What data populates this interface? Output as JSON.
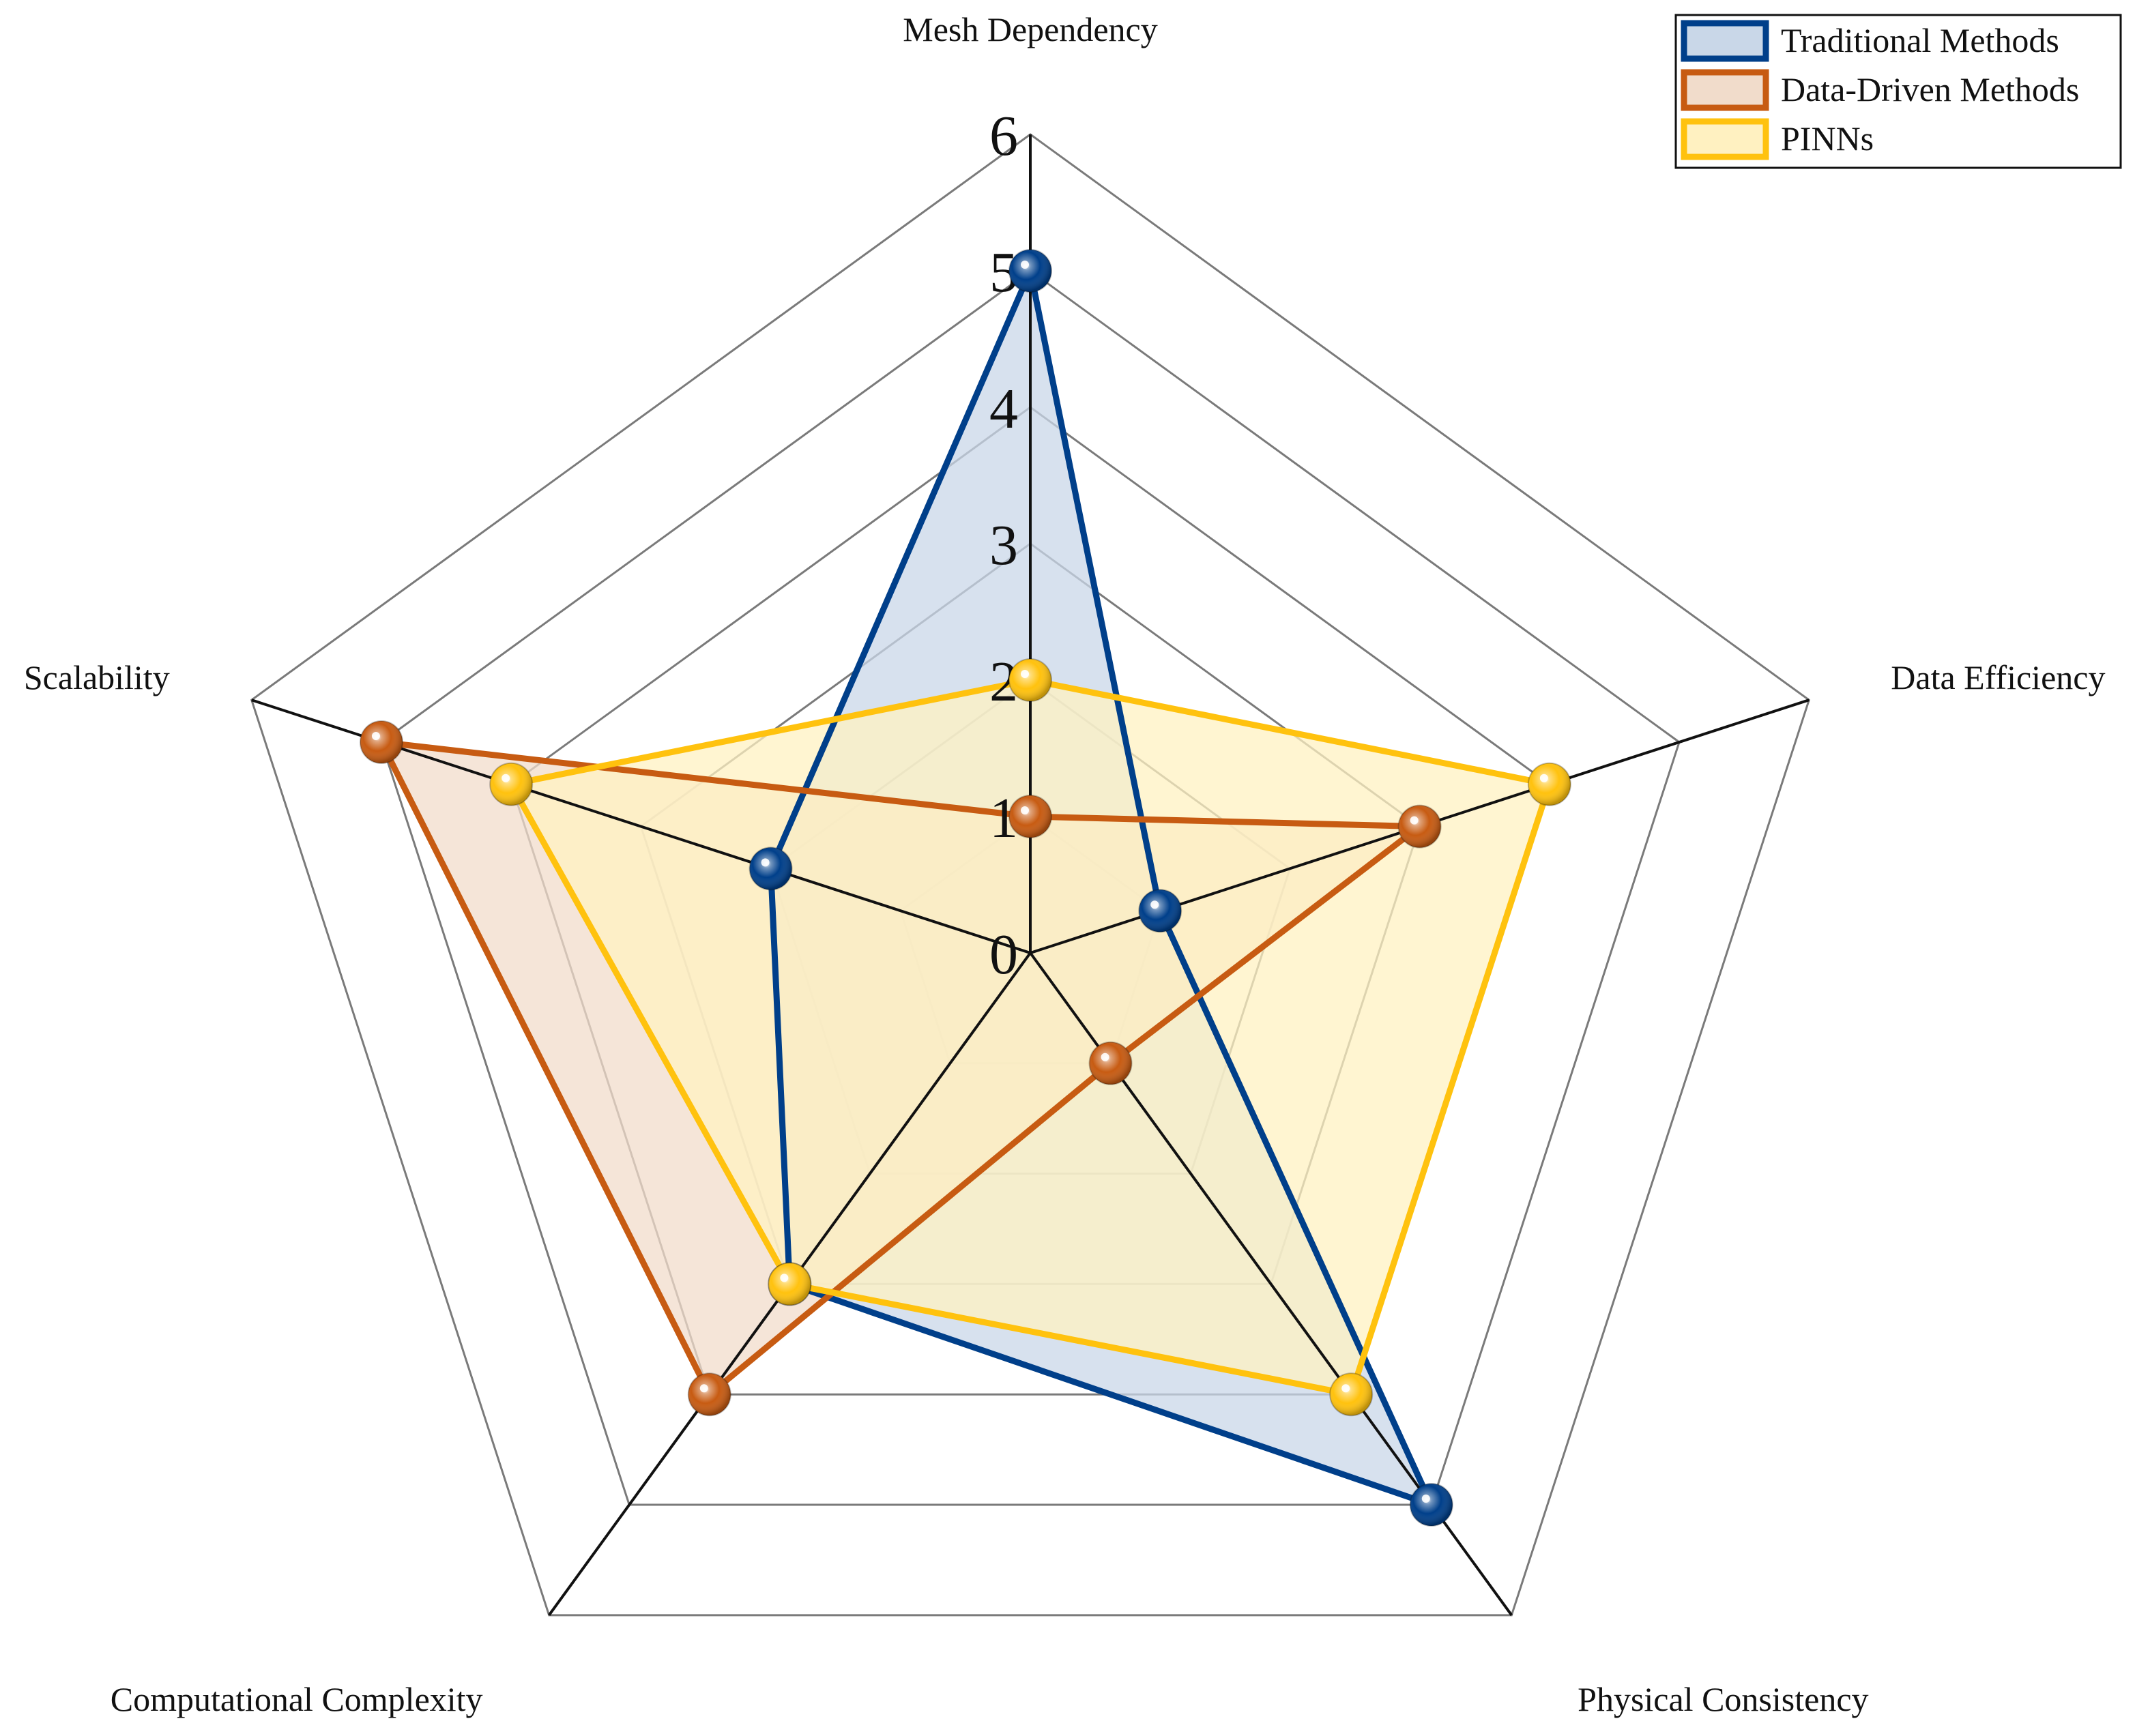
{
  "chart_data": {
    "type": "radar",
    "title": "",
    "axes": [
      "Mesh Dependency",
      "Data Efficiency",
      "Physical Consistency",
      "Computational Complexity",
      "Scalability"
    ],
    "rlim": [
      0,
      6
    ],
    "ticks": [
      "0",
      "1",
      "2",
      "3",
      "4",
      "5",
      "6"
    ],
    "legend_position": "top-right",
    "grid": true,
    "series": [
      {
        "name": "Traditional Methods",
        "values": [
          5,
          1,
          5,
          3,
          2
        ],
        "color": "#003F8A",
        "fill": "#C9D7E8"
      },
      {
        "name": "Data-Driven Methods",
        "values": [
          1,
          3,
          1,
          4,
          5
        ],
        "color": "#C75B12",
        "fill": "#F1DCCB"
      },
      {
        "name": "PINNs",
        "values": [
          2,
          4,
          4,
          3,
          4
        ],
        "color": "#FFC20E",
        "fill": "#FFF1C1"
      }
    ]
  }
}
